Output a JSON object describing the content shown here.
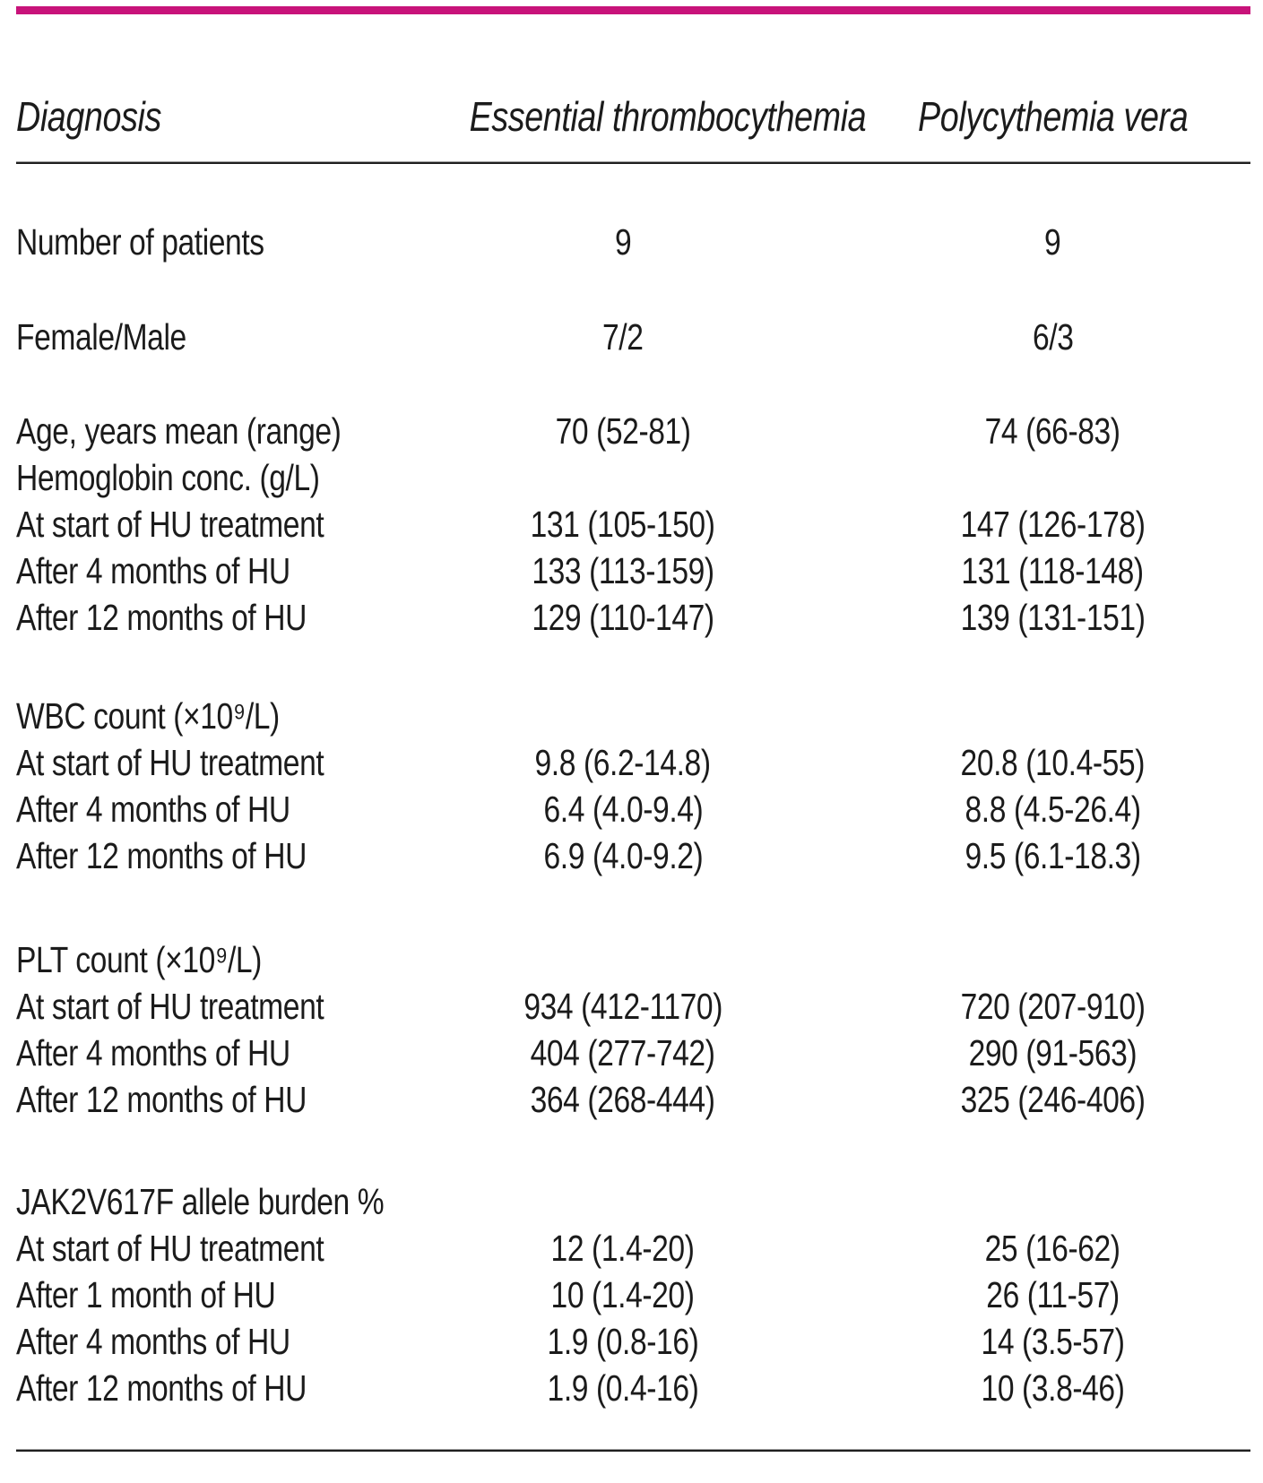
{
  "accent_color": "#C8137A",
  "table": {
    "columns": {
      "diagnosis": "Diagnosis",
      "et": "Essential thrombocythemia",
      "pv": "Polycythemia vera"
    },
    "groups": [
      {
        "rows": [
          {
            "label": "Number of patients",
            "et": "9",
            "pv": "9"
          }
        ]
      },
      {
        "rows": [
          {
            "label": "Female/Male",
            "et": "7/2",
            "pv": "6/3"
          }
        ]
      },
      {
        "rows": [
          {
            "label": "Age, years mean (range)",
            "et": "70 (52-81)",
            "pv": "74 (66-83)"
          },
          {
            "label": "Hemoglobin conc. (g/L)",
            "et": "",
            "pv": ""
          },
          {
            "label": "At start of HU treatment",
            "et": "131 (105-150)",
            "pv": "147 (126-178)"
          },
          {
            "label": "After 4 months of HU",
            "et": "133 (113-159)",
            "pv": "131 (118-148)"
          },
          {
            "label": "After 12 months of HU",
            "et": "129 (110-147)",
            "pv": "139 (131-151)"
          }
        ]
      },
      {
        "rows": [
          {
            "label": "WBC count (×10⁹/L)",
            "et": "",
            "pv": ""
          },
          {
            "label": "At start of HU treatment",
            "et": "9.8 (6.2-14.8)",
            "pv": "20.8 (10.4-55)"
          },
          {
            "label": "After 4 months of HU",
            "et": "6.4 (4.0-9.4)",
            "pv": "8.8 (4.5-26.4)"
          },
          {
            "label": "After 12 months of HU",
            "et": "6.9 (4.0-9.2)",
            "pv": "9.5 (6.1-18.3)"
          }
        ]
      },
      {
        "rows": [
          {
            "label": "PLT count (×10⁹/L)",
            "et": "",
            "pv": ""
          },
          {
            "label": "At start of HU treatment",
            "et": "934 (412-1170)",
            "pv": "720 (207-910)"
          },
          {
            "label": "After 4 months of HU",
            "et": "404 (277-742)",
            "pv": "290 (91-563)"
          },
          {
            "label": "After 12 months of HU",
            "et": "364 (268-444)",
            "pv": "325 (246-406)"
          }
        ]
      },
      {
        "rows": [
          {
            "label": "JAK2V617F allele burden %",
            "et": "",
            "pv": ""
          },
          {
            "label": "At start of HU treatment",
            "et": "12 (1.4-20)",
            "pv": "25 (16-62)"
          },
          {
            "label": "After 1 month of HU",
            "et": "10 (1.4-20)",
            "pv": "26 (11-57)"
          },
          {
            "label": "After 4 months of HU",
            "et": "1.9 (0.8-16)",
            "pv": "14 (3.5-57)"
          },
          {
            "label": "After 12 months of HU",
            "et": "1.9 (0.4-16)",
            "pv": "10 (3.8-46)"
          }
        ]
      }
    ]
  }
}
